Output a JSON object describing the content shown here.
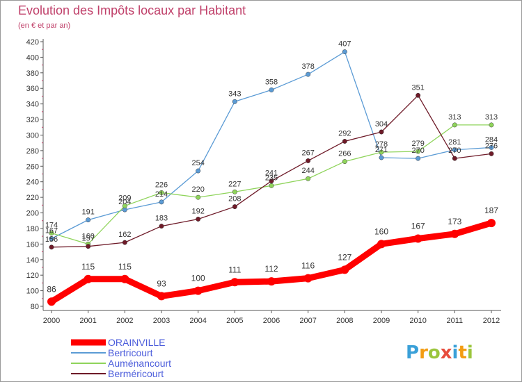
{
  "title": "Evolution des Impôts locaux par Habitant",
  "subtitle": "(en € et par an)",
  "brand": {
    "letters": [
      "P",
      "r",
      "o",
      "x",
      "i",
      "t",
      "i"
    ],
    "colors": [
      "#3aa0d8",
      "#f39c12",
      "#9bc53d",
      "#e74c3c",
      "#3aa0d8",
      "#f39c12",
      "#9bc53d"
    ]
  },
  "chart_data": {
    "type": "line",
    "x": [
      "2000",
      "2001",
      "2002",
      "2003",
      "2004",
      "2005",
      "2006",
      "2007",
      "2008",
      "2009",
      "2010",
      "2011",
      "2012"
    ],
    "ylim": [
      80,
      420
    ],
    "yticks": [
      80,
      100,
      120,
      140,
      160,
      180,
      200,
      220,
      240,
      260,
      280,
      300,
      320,
      340,
      360,
      380,
      400,
      420
    ],
    "grid": false,
    "legend_position": "bottom-left",
    "series": [
      {
        "name": "Bertricourt",
        "color": "#5b9bd5",
        "values": [
          167,
          191,
          204,
          214,
          254,
          343,
          358,
          378,
          407,
          271,
          270,
          281,
          284
        ]
      },
      {
        "name": "Auménancourt",
        "color": "#8fd45b",
        "values": [
          174,
          160,
          209,
          226,
          220,
          227,
          235,
          244,
          266,
          278,
          279,
          313,
          313
        ]
      },
      {
        "name": "Berméricourt",
        "color": "#6e1a28",
        "values": [
          156,
          157,
          162,
          183,
          192,
          208,
          241,
          267,
          292,
          304,
          351,
          270,
          276
        ]
      },
      {
        "name": "ORAINVILLE",
        "color": "#ff0000",
        "values": [
          86,
          115,
          115,
          93,
          100,
          111,
          112,
          116,
          127,
          160,
          167,
          173,
          187
        ]
      }
    ]
  }
}
